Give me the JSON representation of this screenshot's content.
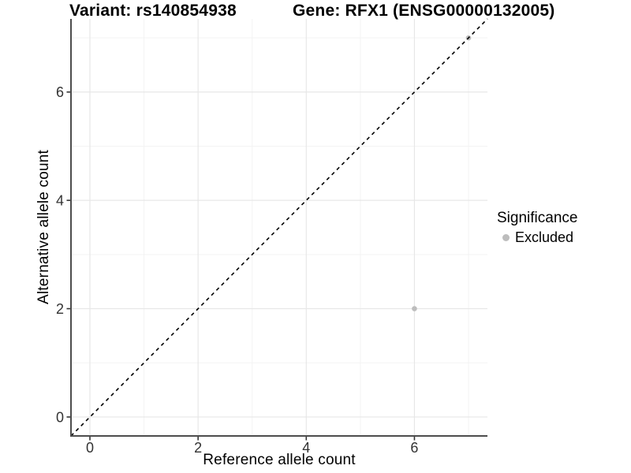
{
  "chart_data": {
    "type": "scatter",
    "titles": {
      "variant": "Variant: rs140854938",
      "gene": "Gene: RFX1 (ENSG00000132005)"
    },
    "xlabel": "Reference allele count",
    "ylabel": "Alternative allele count",
    "xlim": [
      -0.35,
      7.35
    ],
    "ylim": [
      -0.35,
      7.35
    ],
    "xticks": [
      0,
      2,
      4,
      6
    ],
    "yticks": [
      0,
      2,
      4,
      6
    ],
    "minor_xticks": [
      1,
      3,
      5,
      7
    ],
    "minor_yticks": [
      1,
      3,
      5,
      7
    ],
    "grid": true,
    "identity_line": {
      "style": "dashed",
      "slope": 1,
      "intercept": 0,
      "color": "#000000"
    },
    "series": [
      {
        "name": "Excluded",
        "color": "#bdbdbd",
        "points": [
          {
            "x": 6,
            "y": 2
          },
          {
            "x": 7,
            "y": 7
          }
        ]
      }
    ],
    "legend": {
      "title": "Significance",
      "position": "right",
      "items": [
        {
          "label": "Excluded",
          "color": "#bdbdbd"
        }
      ]
    },
    "colors": {
      "background": "#ffffff",
      "grid_major": "#e7e7e7",
      "grid_minor": "#f3f3f3",
      "axis_line": "#4d4d4d",
      "tick_mark": "#333333",
      "tick_text": "#333333",
      "title_text": "#000000"
    }
  }
}
